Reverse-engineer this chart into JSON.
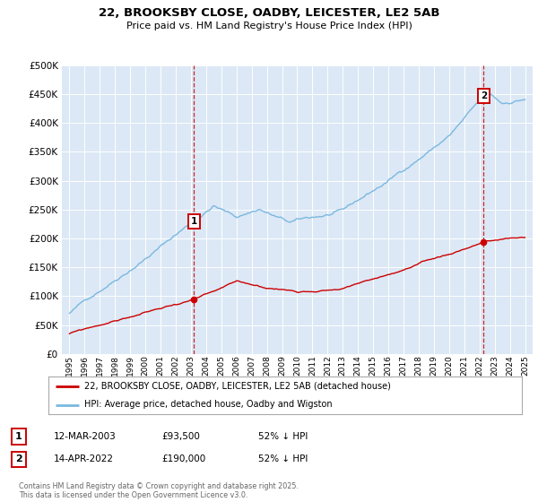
{
  "title": "22, BROOKSBY CLOSE, OADBY, LEICESTER, LE2 5AB",
  "subtitle": "Price paid vs. HM Land Registry's House Price Index (HPI)",
  "legend_line1": "22, BROOKSBY CLOSE, OADBY, LEICESTER, LE2 5AB (detached house)",
  "legend_line2": "HPI: Average price, detached house, Oadby and Wigston",
  "transaction1_label": "1",
  "transaction1_date": "12-MAR-2003",
  "transaction1_price": "£93,500",
  "transaction1_hpi": "52% ↓ HPI",
  "transaction2_label": "2",
  "transaction2_date": "14-APR-2022",
  "transaction2_price": "£190,000",
  "transaction2_hpi": "52% ↓ HPI",
  "footer": "Contains HM Land Registry data © Crown copyright and database right 2025.\nThis data is licensed under the Open Government Licence v3.0.",
  "property_color": "#cc0000",
  "hpi_color": "#7ab8e0",
  "vline_color": "#cc0000",
  "plot_bg_color": "#dce8f5",
  "ylim": [
    0,
    500000
  ],
  "yticks": [
    0,
    50000,
    100000,
    150000,
    200000,
    250000,
    300000,
    350000,
    400000,
    450000,
    500000
  ],
  "transaction1_year": 2003.19,
  "transaction2_year": 2022.28,
  "xlim_left": 1994.5,
  "xlim_right": 2025.5
}
